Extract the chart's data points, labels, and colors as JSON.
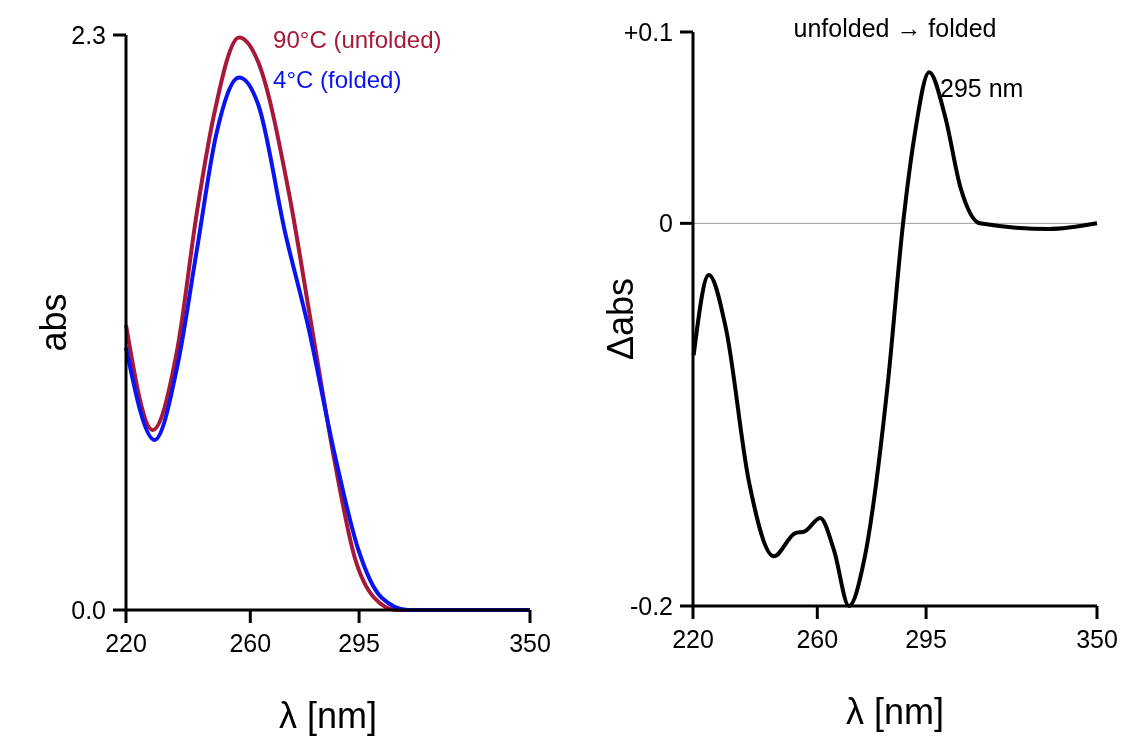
{
  "chart_data": [
    {
      "type": "line",
      "xlabel": "λ [nm]",
      "ylabel": "abs",
      "xlim": [
        220,
        350
      ],
      "ylim": [
        0,
        2.3
      ],
      "xticks": [
        220,
        260,
        295,
        350
      ],
      "yticks": [
        {
          "value": 0,
          "label": "0.0"
        },
        2.3
      ],
      "grid": false,
      "series": [
        {
          "name": "90°C (unfolded)",
          "color": "#a8183a",
          "x": [
            220,
            228.6,
            236.6,
            242.8,
            248.3,
            256.4,
            262.6,
            272.4,
            279.8,
            287.2,
            293.6,
            299.8,
            307,
            350
          ],
          "values": [
            1.14,
            0.72,
            1.05,
            1.59,
            1.98,
            2.29,
            2.19,
            1.67,
            1.13,
            0.59,
            0.21,
            0.05,
            0,
            0
          ]
        },
        {
          "name": "4°C (folded)",
          "color": "#0a14f0",
          "x": [
            220,
            229.2,
            236.6,
            242.8,
            249,
            256.4,
            262.6,
            271.2,
            278.7,
            287.2,
            294.8,
            302.2,
            310.7,
            350
          ],
          "values": [
            1.05,
            0.68,
            0.98,
            1.44,
            1.9,
            2.13,
            2.02,
            1.51,
            1.13,
            0.62,
            0.24,
            0.05,
            0,
            0
          ]
        }
      ]
    },
    {
      "type": "line",
      "title": "unfolded → folded",
      "xlabel": "λ [nm]",
      "ylabel": "Δabs",
      "xlim": [
        220,
        350
      ],
      "ylim": [
        -0.2,
        0.1
      ],
      "xticks": [
        220,
        260,
        295,
        350
      ],
      "yticks": [
        -0.2,
        0,
        {
          "value": 0.1,
          "label": "+0.1"
        }
      ],
      "grid": false,
      "ref_lines": [
        {
          "axis": "y",
          "value": 0,
          "color": "#999999"
        }
      ],
      "annotations": [
        {
          "text": "295 nm",
          "x": 295,
          "y": 0.079
        }
      ],
      "series": [
        {
          "color": "#000000",
          "x": [
            220.2,
            225.1,
            230.6,
            238,
            246,
            252.8,
            256,
            260.9,
            265.4,
            270.2,
            275.2,
            282.6,
            287.6,
            291.3,
            296,
            301.1,
            306.2,
            312.3,
            334.5,
            350
          ],
          "values": [
            -0.069,
            -0.027,
            -0.055,
            -0.135,
            -0.174,
            -0.162,
            -0.161,
            -0.154,
            -0.171,
            -0.2,
            -0.175,
            -0.085,
            0,
            0.046,
            0.079,
            0.056,
            0.018,
            0,
            -0.003,
            0
          ]
        }
      ]
    }
  ]
}
